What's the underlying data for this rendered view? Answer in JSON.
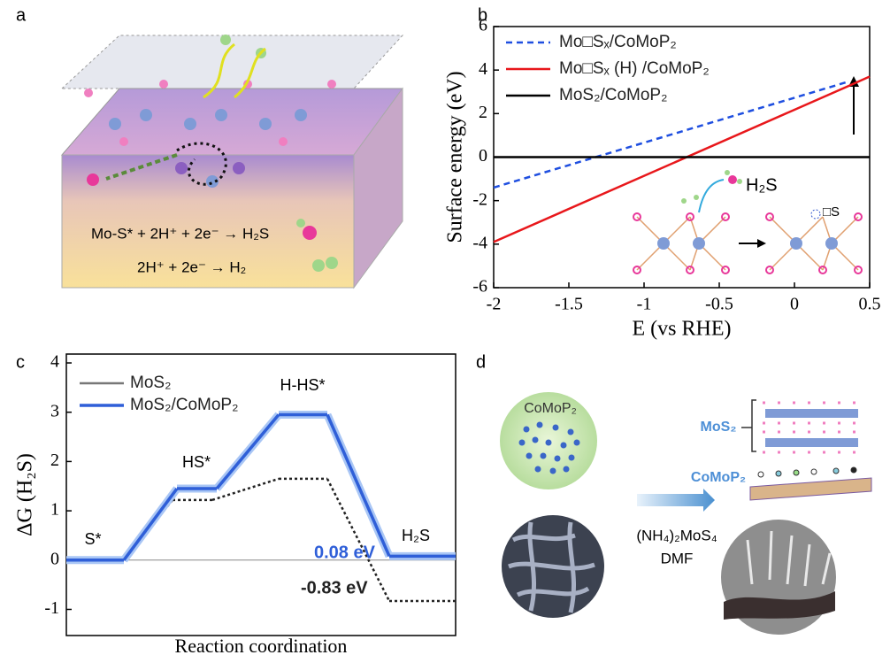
{
  "panels": {
    "a": {
      "label": "a",
      "equations": [
        "Mo-S* + 2H⁺ + 2e⁻ → H₂S",
        "2H⁺ + 2e⁻ → H₂"
      ]
    },
    "d": {
      "label": "d",
      "precursor": "CoMoP₂",
      "reagent": "(NH₄)₂MoS₄",
      "solvent": "DMF",
      "layer_top": "MoS₂",
      "layer_bottom": "CoMoP₂"
    }
  },
  "chart_data": [
    {
      "panel_label": "b",
      "type": "line",
      "x": [
        -2,
        0.35,
        0.5
      ],
      "series": [
        {
          "name": "Mo□Sₓ/CoMoP₂",
          "color": "#1f4fe0",
          "dash": true,
          "values": [
            -1.4,
            3.45,
            null
          ]
        },
        {
          "name": "Mo□Sₓ (H) /CoMoP₂",
          "color": "#e8171b",
          "values": [
            -3.9,
            3.24,
            3.7
          ]
        },
        {
          "name": "MoS₂/CoMoP₂",
          "color": "#000000",
          "values": [
            0,
            0,
            0
          ]
        }
      ],
      "xlim": [
        -2,
        0.5
      ],
      "ylim": [
        -6,
        6
      ],
      "xticks": [
        -2,
        -1.5,
        -1,
        -0.5,
        0,
        0.5
      ],
      "yticks": [
        -6,
        -4,
        -2,
        0,
        2,
        4,
        6
      ],
      "xlabel": "E (vs RHE)",
      "ylabel": "Surface energy (eV)",
      "annotations": {
        "product": "H₂S",
        "vacancy": "□S"
      },
      "legend": "upper left"
    },
    {
      "panel_label": "c",
      "type": "step",
      "categories": [
        "S*",
        "HS*",
        "H-HS*",
        "H₂S"
      ],
      "series": [
        {
          "name": "MoS₂",
          "color": "#222222",
          "dash": true,
          "values": [
            0,
            1.22,
            1.65,
            -0.83
          ],
          "value_labels": [
            null,
            null,
            null,
            "-0.83 eV"
          ]
        },
        {
          "name": "MoS₂/CoMoP₂",
          "color": "#2f5fd8",
          "glow": true,
          "values": [
            0,
            1.45,
            2.95,
            0.08
          ],
          "value_labels": [
            null,
            null,
            null,
            "0.08 eV"
          ]
        }
      ],
      "ylim": [
        -1.53,
        4.18
      ],
      "yticks": [
        -1,
        0,
        1,
        2,
        3,
        4
      ],
      "xlabel": "Reaction coordination",
      "ylabel": "ΔG (H₂S)",
      "legend": "upper left"
    }
  ]
}
